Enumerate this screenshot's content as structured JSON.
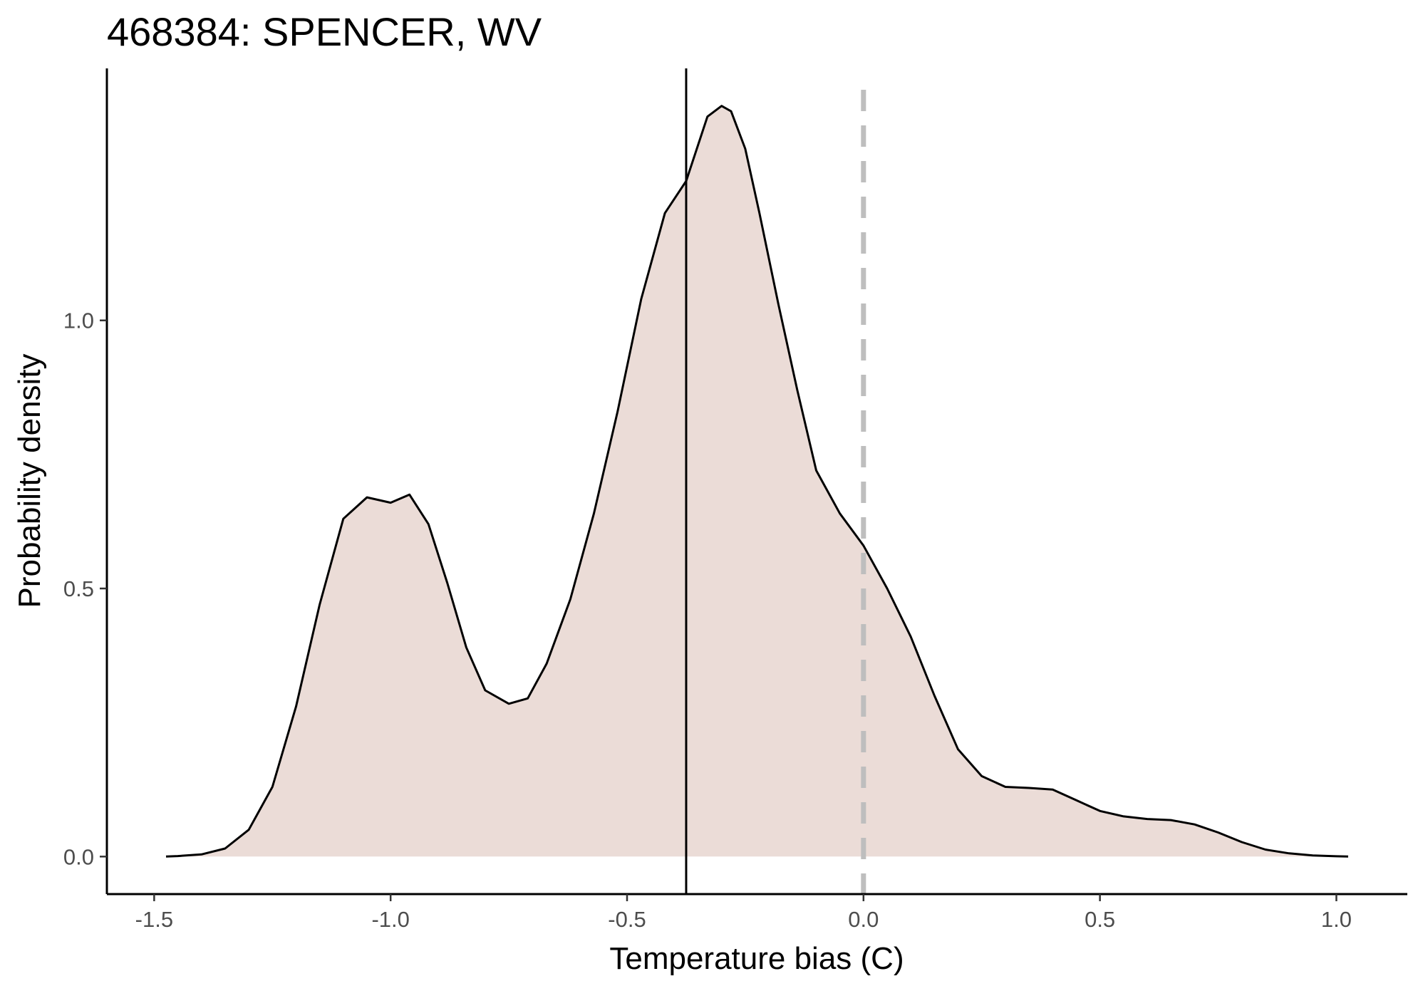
{
  "chart_data": {
    "type": "area",
    "title": "468384: SPENCER, WV",
    "xlabel": "Temperature bias (C)",
    "ylabel": "Probability density",
    "xlim": [
      -1.6,
      1.15
    ],
    "ylim": [
      -0.07,
      1.47
    ],
    "x_ticks": [
      -1.5,
      -1.0,
      -0.5,
      0.0,
      0.5,
      1.0
    ],
    "x_tick_labels": [
      "-1.5",
      "-1.0",
      "-0.5",
      "0.0",
      "0.5",
      "1.0"
    ],
    "y_ticks": [
      0.0,
      0.5,
      1.0
    ],
    "y_tick_labels": [
      "0.0",
      "0.5",
      "1.0"
    ],
    "grid": false,
    "legend": "none",
    "fill_color": "#ebdcd7",
    "line_color": "#000000",
    "vline_solid": {
      "x": -0.375,
      "color": "#000000"
    },
    "vline_dashed": {
      "x": 0.0,
      "color": "#bebebe"
    },
    "density": {
      "x": [
        -1.475,
        -1.45,
        -1.4,
        -1.35,
        -1.3,
        -1.25,
        -1.2,
        -1.15,
        -1.1,
        -1.05,
        -1.0,
        -0.96,
        -0.92,
        -0.88,
        -0.84,
        -0.8,
        -0.75,
        -0.71,
        -0.67,
        -0.62,
        -0.57,
        -0.52,
        -0.47,
        -0.42,
        -0.375,
        -0.33,
        -0.3,
        -0.28,
        -0.25,
        -0.22,
        -0.18,
        -0.14,
        -0.1,
        -0.05,
        0.0,
        0.05,
        0.1,
        0.15,
        0.2,
        0.25,
        0.3,
        0.35,
        0.4,
        0.45,
        0.5,
        0.55,
        0.6,
        0.65,
        0.7,
        0.75,
        0.8,
        0.85,
        0.9,
        0.95,
        1.0,
        1.025
      ],
      "y": [
        0.0,
        0.001,
        0.004,
        0.015,
        0.05,
        0.13,
        0.28,
        0.47,
        0.63,
        0.67,
        0.66,
        0.675,
        0.62,
        0.51,
        0.39,
        0.31,
        0.285,
        0.295,
        0.36,
        0.48,
        0.64,
        0.83,
        1.04,
        1.2,
        1.26,
        1.38,
        1.4,
        1.39,
        1.32,
        1.2,
        1.03,
        0.87,
        0.72,
        0.64,
        0.58,
        0.5,
        0.41,
        0.3,
        0.2,
        0.15,
        0.13,
        0.128,
        0.125,
        0.105,
        0.085,
        0.075,
        0.07,
        0.068,
        0.06,
        0.045,
        0.027,
        0.013,
        0.006,
        0.002,
        0.0005,
        0.0
      ]
    }
  }
}
